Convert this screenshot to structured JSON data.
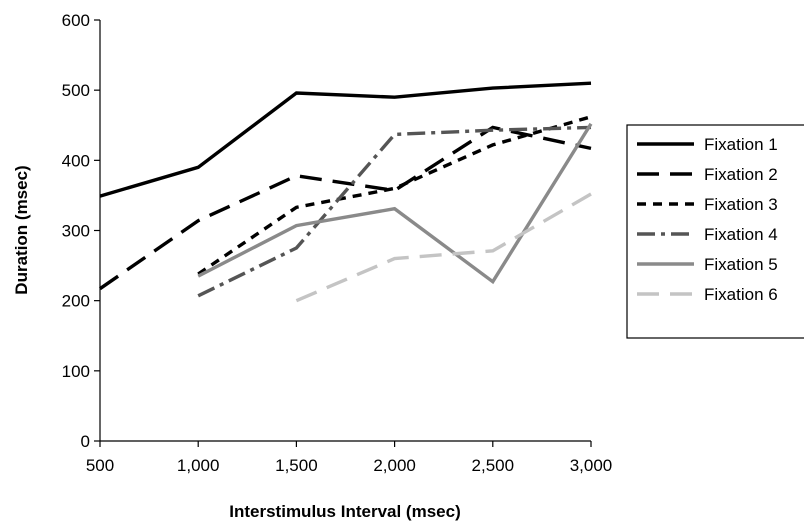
{
  "chart_data": {
    "type": "line",
    "title": "",
    "xlabel": "Interstimulus Interval (msec)",
    "ylabel": "Duration (msec)",
    "x": [
      500,
      1000,
      1500,
      2000,
      2500,
      3000
    ],
    "x_tick_labels": [
      "500",
      "1,000",
      "1,500",
      "2,000",
      "2,500",
      "3,000"
    ],
    "y_tick_labels": [
      "0",
      "100",
      "200",
      "300",
      "400",
      "500",
      "600"
    ],
    "xlim": [
      500,
      3000
    ],
    "ylim": [
      0,
      600
    ],
    "grid": false,
    "legend_position": "right",
    "series": [
      {
        "name": "Fixation 1",
        "color": "#000000",
        "dash": "solid",
        "values": [
          349,
          390,
          496,
          490,
          503,
          510
        ]
      },
      {
        "name": "Fixation 2",
        "color": "#000000",
        "dash": "long-dash",
        "values": [
          217,
          314,
          378,
          357,
          447,
          417
        ]
      },
      {
        "name": "Fixation 3",
        "color": "#000000",
        "dash": "short-dash",
        "values": [
          null,
          238,
          333,
          360,
          422,
          462
        ]
      },
      {
        "name": "Fixation 4",
        "color": "#555555",
        "dash": "dash-dot",
        "values": [
          null,
          207,
          275,
          437,
          443,
          447
        ]
      },
      {
        "name": "Fixation 5",
        "color": "#8a8a8a",
        "dash": "solid",
        "values": [
          null,
          235,
          307,
          331,
          227,
          452
        ]
      },
      {
        "name": "Fixation 6",
        "color": "#c4c4c4",
        "dash": "long-dash",
        "values": [
          null,
          null,
          200,
          260,
          271,
          352
        ]
      }
    ]
  }
}
